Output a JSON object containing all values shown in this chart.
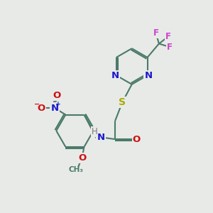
{
  "bg_color": "#e8eae8",
  "bond_color": "#4a7a6a",
  "bond_width": 1.5,
  "atom_colors": {
    "N": "#1a1acc",
    "O": "#cc1111",
    "S": "#aaaa00",
    "F": "#cc44cc",
    "H": "#777777",
    "C": "#4a7a6a"
  },
  "font_size_main": 9,
  "fig_size": [
    3.0,
    3.0
  ],
  "dpi": 100
}
